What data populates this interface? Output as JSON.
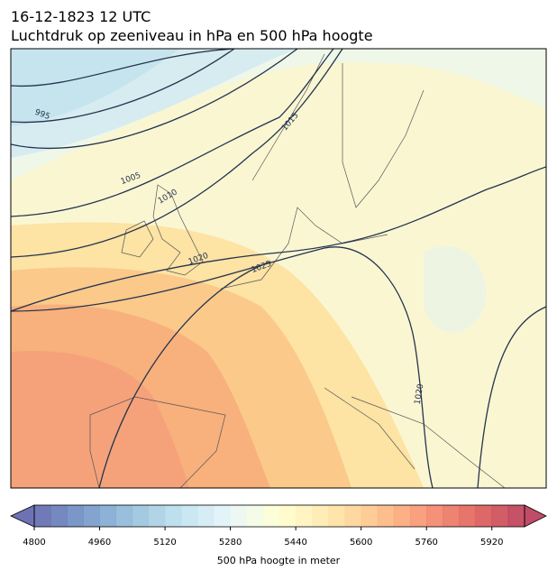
{
  "title": "16-12-1823 12 UTC",
  "subtitle": "Luchtdruk op zeeniveau in hPa en 500 hPa hoogte",
  "contour_labels": [
    "995",
    "1005",
    "1010",
    "1015",
    "1020",
    "1025",
    "1020"
  ],
  "colorbar": {
    "label": "500 hPa hoogte in meter",
    "lim": [
      4800,
      6000
    ],
    "step": 40,
    "ticks": [
      4800,
      4960,
      5120,
      5280,
      5440,
      5600,
      5760,
      5920
    ],
    "colormap": [
      "#313695",
      "#4575b4",
      "#74add1",
      "#abd9e9",
      "#e0f3f8",
      "#ffffbf",
      "#fee090",
      "#fdae61",
      "#f46d43",
      "#d73027",
      "#a50026"
    ],
    "opacity": 0.7
  }
}
